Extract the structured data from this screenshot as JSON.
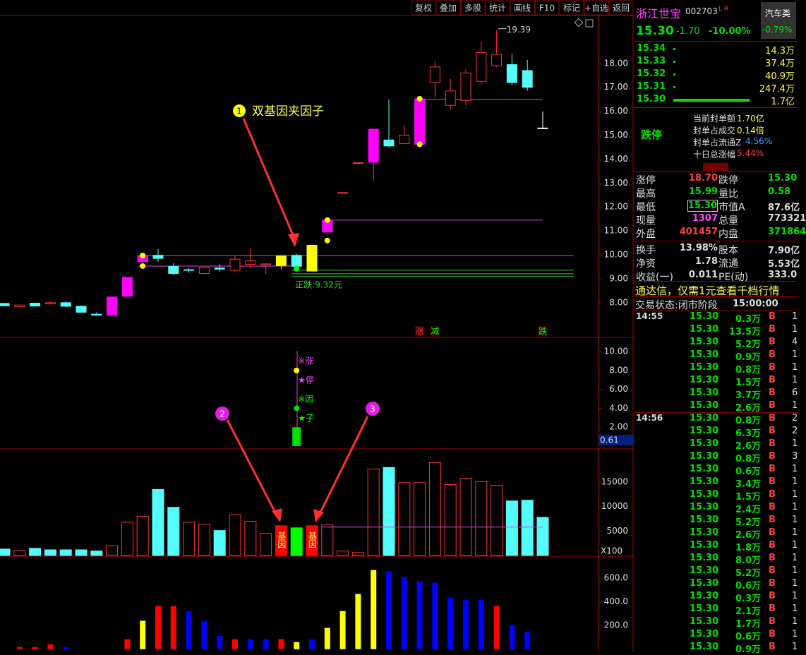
{
  "toolbar": [
    "复权",
    "叠加",
    "多股",
    "统计",
    "画线",
    "F10",
    "标记",
    "+自选",
    "返回"
  ],
  "callouts": [
    {
      "number": "1",
      "text": "双基因夹因子"
    },
    {
      "number": "2"
    },
    {
      "number": "3"
    }
  ],
  "chart_data": [
    {
      "type": "candlestick",
      "ylim": [
        6.55,
        20.0
      ],
      "yticks": [
        {
          "value": 18,
          "label": "18.00"
        },
        {
          "value": 17,
          "label": "17.00"
        },
        {
          "value": 16,
          "label": "16.00"
        },
        {
          "value": 15,
          "label": "15.00"
        },
        {
          "value": 14,
          "label": "14.00"
        },
        {
          "value": 13,
          "label": "13.00"
        },
        {
          "value": 12,
          "label": "12.00"
        },
        {
          "value": 11,
          "label": "11.00"
        },
        {
          "value": 10,
          "label": "10.00"
        },
        {
          "value": 9,
          "label": "9.00"
        },
        {
          "value": 8,
          "label": "8.00"
        }
      ],
      "open": [
        7.97,
        7.83,
        7.98,
        7.95,
        8.0,
        7.85,
        7.52,
        7.48,
        8.27,
        9.71,
        9.98,
        9.52,
        9.38,
        9.22,
        9.45,
        9.35,
        9.6,
        9.58,
        9.95,
        9.98,
        9.32,
        10.95,
        12.6,
        13.85,
        13.87,
        14.8,
        14.65,
        14.62,
        17.2,
        16.25,
        16.45,
        17.25,
        17.9,
        17.95,
        17.7,
        15.3
      ],
      "high": [
        7.99,
        7.92,
        8.0,
        8.05,
        8.05,
        7.88,
        7.6,
        8.25,
        9.07,
        9.98,
        10.25,
        9.65,
        9.45,
        9.55,
        9.6,
        9.95,
        10.3,
        9.65,
        9.95,
        10.05,
        10.4,
        11.45,
        12.6,
        13.85,
        15.25,
        16.5,
        15.4,
        16.52,
        18.1,
        17.35,
        17.75,
        18.9,
        19.39,
        18.4,
        18.15,
        15.99
      ],
      "low": [
        7.85,
        7.8,
        7.85,
        7.92,
        7.82,
        7.58,
        7.45,
        7.47,
        8.25,
        9.68,
        9.7,
        9.15,
        9.25,
        9.18,
        9.3,
        9.3,
        9.45,
        9.2,
        9.4,
        9.45,
        9.32,
        10.9,
        12.6,
        13.85,
        13.1,
        14.5,
        14.65,
        14.6,
        16.6,
        16.1,
        16.25,
        17.1,
        17.85,
        17.1,
        16.85,
        15.3
      ],
      "close": [
        7.87,
        7.9,
        7.86,
        8.0,
        7.85,
        7.6,
        7.48,
        8.24,
        9.06,
        9.95,
        9.85,
        9.22,
        9.35,
        9.48,
        9.4,
        9.82,
        9.75,
        9.62,
        9.55,
        9.52,
        10.4,
        11.45,
        12.6,
        13.85,
        15.25,
        14.55,
        15.0,
        16.52,
        17.85,
        16.85,
        17.6,
        18.45,
        18.38,
        17.2,
        17.0,
        15.3
      ],
      "colors": [
        "#54fcfc",
        "#ff3232",
        "#54fcfc",
        "#ff3232",
        "#54fcfc",
        "#54fcfc",
        "#54fcfc",
        "#ff00ff",
        "#ff00ff",
        "#ff00ff",
        "#54fcfc",
        "#54fcfc",
        "#54fcfc",
        "#ff3232",
        "#54fcfc",
        "#ff3232",
        "#ff3232",
        "#ff3232",
        "#ffff00",
        "#54fcfc",
        "#ffff00",
        "#ff00ff",
        "#ff3232",
        "#ff3232",
        "#ff00ff",
        "#54fcfc",
        "#ff3232",
        "#ff00ff",
        "#ff3232",
        "#ff3232",
        "#ff3232",
        "#ff3232",
        "#ff3232",
        "#54fcfc",
        "#54fcfc",
        "#ffffff"
      ],
      "hollow": [
        false,
        true,
        false,
        true,
        false,
        false,
        false,
        false,
        false,
        false,
        false,
        false,
        false,
        true,
        false,
        true,
        true,
        true,
        false,
        false,
        false,
        false,
        true,
        true,
        false,
        false,
        true,
        false,
        true,
        true,
        true,
        true,
        true,
        false,
        false,
        false
      ],
      "dots": [
        {
          "index": 9,
          "value": 9.97,
          "color": "#ffff00"
        },
        {
          "index": 9,
          "value": 9.53,
          "color": "#ffff00"
        },
        {
          "index": 21,
          "value": 11.45,
          "color": "#ffff00"
        },
        {
          "index": 21,
          "value": 10.6,
          "color": "#ffff00"
        },
        {
          "index": 27,
          "value": 16.52,
          "color": "#ffff00"
        },
        {
          "index": 27,
          "value": 14.62,
          "color": "#ffff00"
        },
        {
          "index": 19,
          "value": 9.42,
          "color": "#00ff00"
        }
      ],
      "levels": [
        {
          "value": 9.97,
          "color": "#e040e0",
          "start": 9,
          "end": 37
        },
        {
          "value": 9.53,
          "color": "#e040e0",
          "start": 9,
          "end": 19
        },
        {
          "value": 16.5,
          "color": "#e040e0",
          "start": 27,
          "end": 35
        },
        {
          "value": 11.45,
          "color": "#e040e0",
          "start": 21,
          "end": 35
        },
        {
          "value": 9.36,
          "color": "#30d030",
          "start": 19,
          "end": 37
        },
        {
          "value": 9.21,
          "color": "#30d030",
          "start": 19,
          "end": 37
        },
        {
          "value": 9.09,
          "color": "#30d030",
          "start": 19,
          "end": 37
        }
      ],
      "note": "正跌:9.32元",
      "signals": [
        {
          "text": "涨",
          "index": 27,
          "color": "#ff3232"
        },
        {
          "text": "减",
          "index": 28,
          "color": "#00ff00"
        },
        {
          "text": "跌",
          "index": 35,
          "color": "#00ff00"
        }
      ]
    },
    {
      "type": "signal",
      "ylim": [
        -0.3,
        11.5
      ],
      "yticks": [
        {
          "value": 10,
          "label": "10.00"
        },
        {
          "value": 8,
          "label": "8.00"
        },
        {
          "value": 6,
          "label": "6.00"
        },
        {
          "value": 4,
          "label": "4.00"
        },
        {
          "value": 2,
          "label": "2.00"
        }
      ],
      "bar": {
        "index": 19,
        "value": 2,
        "color": "#00dd00"
      },
      "dots": [
        {
          "value": 8,
          "color": "#ffff00"
        },
        {
          "value": 4,
          "color": "#00dd00"
        }
      ],
      "labels": [
        {
          "text": "※涨",
          "color": "#ff40ff"
        },
        {
          "text": "★停",
          "color": "#ff40ff"
        },
        {
          "text": "※因",
          "color": "#00ff00"
        },
        {
          "text": "★子",
          "color": "#00ff00"
        }
      ],
      "current": 0.61
    },
    {
      "type": "volume",
      "ylim": [
        -150,
        21800
      ],
      "yticks": [
        15000,
        10000,
        5000
      ],
      "unit": "X100",
      "values": [
        1300,
        1000,
        1450,
        1150,
        1150,
        1150,
        900,
        2000,
        6800,
        8000,
        13500,
        9850,
        6800,
        6400,
        5100,
        8300,
        7000,
        4500,
        6100,
        5650,
        6100,
        6250,
        900,
        600,
        17700,
        18000,
        14900,
        14900,
        19000,
        14500,
        15800,
        15100,
        14350,
        11150,
        11300,
        7800
      ],
      "colors": [
        "#54fcfc",
        "#ff3232",
        "#54fcfc",
        "#54fcfc",
        "#54fcfc",
        "#54fcfc",
        "#54fcfc",
        "#ff3232",
        "#ff3232",
        "#ff3232",
        "#54fcfc",
        "#54fcfc",
        "#ff3232",
        "#ff3232",
        "#54fcfc",
        "#ff3232",
        "#ff3232",
        "#ff3232",
        "#ff0000",
        "#00ff00",
        "#ff0000",
        "#ff3232",
        "#ff3232",
        "#ff3232",
        "#ff3232",
        "#54fcfc",
        "#ff3232",
        "#ff3232",
        "#ff3232",
        "#ff3232",
        "#ff3232",
        "#ff3232",
        "#ff3232",
        "#54fcfc",
        "#54fcfc",
        "#54fcfc"
      ],
      "hollow": [
        false,
        true,
        false,
        false,
        false,
        false,
        false,
        true,
        true,
        true,
        false,
        false,
        true,
        true,
        false,
        true,
        true,
        true,
        false,
        false,
        false,
        true,
        true,
        true,
        true,
        false,
        true,
        true,
        true,
        true,
        true,
        true,
        true,
        false,
        false,
        false
      ],
      "annotations": [
        {
          "text": "基因",
          "index": 18
        },
        {
          "text": "基因",
          "index": 20
        }
      ],
      "levels": [
        {
          "value": 5800,
          "color": "#e040e0",
          "start": 21,
          "end": 35
        }
      ]
    },
    {
      "type": "bar",
      "ylim": [
        -25,
        785
      ],
      "yticks": [
        {
          "value": 600,
          "label": "600.0"
        },
        {
          "value": 400,
          "label": "400.0"
        },
        {
          "value": 200,
          "label": "200.0"
        }
      ],
      "values": [
        null,
        18,
        18,
        42,
        18,
        null,
        null,
        null,
        84,
        240,
        364,
        364,
        322,
        240,
        113,
        84,
        84,
        84,
        84,
        60,
        84,
        180,
        322,
        466,
        669,
        657,
        609,
        573,
        561,
        436,
        418,
        418,
        364,
        203,
        143,
        null
      ],
      "colors": [
        null,
        "#ff0000",
        "#ff0000",
        "#ff0000",
        "#0000ff",
        null,
        null,
        null,
        "#ff0000",
        "#ffff00",
        "#ff0000",
        "#ff0000",
        "#0000ff",
        "#0000ff",
        "#0000ff",
        "#ff0000",
        "#0000ff",
        "#0000ff",
        "#ff0000",
        "#ffff00",
        "#0000ff",
        "#ffff00",
        "#ffff00",
        "#ffff00",
        "#ffff00",
        "#0000ff",
        "#0000ff",
        "#0000ff",
        "#0000ff",
        "#0000ff",
        "#0000ff",
        "#0000ff",
        "#ff0000",
        "#0000ff",
        "#0000ff",
        null
      ]
    }
  ],
  "quote": {
    "name": "浙江世宝",
    "code": "002703",
    "flags": "L R",
    "sector": "汽车类",
    "price": "15.30",
    "change": "-1.70",
    "pct": "-10.00%",
    "sector_pct": "-0.79%"
  },
  "order_book": [
    [
      "15.34",
      "14.3万"
    ],
    [
      "15.33",
      "37.4万"
    ],
    [
      "15.32",
      "40.9万"
    ],
    [
      "15.31",
      "247.4万"
    ],
    [
      "15.30",
      "1.7亿"
    ]
  ],
  "limit_box": {
    "label": "跌停",
    "items": [
      [
        "当前封单额",
        "1.70亿"
      ],
      [
        "封单占成交",
        "0.14倍"
      ],
      [
        "封单占流通Z",
        "4.56%"
      ],
      [
        "十日总涨幅",
        "5.44%"
      ]
    ]
  },
  "stats": [
    [
      "涨停",
      "18.70",
      "跌停",
      "15.30"
    ],
    [
      "最高",
      "15.99",
      "量比",
      "0.58"
    ],
    [
      "最低",
      "15.30",
      "市值A",
      "87.6亿"
    ],
    [
      "现量",
      "1307",
      "总量",
      "773321"
    ],
    [
      "外盘",
      "401457",
      "内盘",
      "371864"
    ],
    [
      "换手",
      "13.98%",
      "股本",
      "7.90亿"
    ],
    [
      "净资",
      "1.78",
      "流通",
      "5.53亿"
    ],
    [
      "收益(一)",
      "0.011",
      "PE(动)",
      "333.0"
    ]
  ],
  "banner": "通达信，仅需1元查看千档行情",
  "status": [
    "交易状态:闭市阶段",
    "15:00:00"
  ],
  "trades": [
    {
      "time": "14:55",
      "rows": [
        [
          "15.30",
          "0.3万",
          "B",
          "1"
        ],
        [
          "15.30",
          "13.5万",
          "B",
          "1"
        ],
        [
          "15.30",
          "5.2万",
          "B",
          "4"
        ],
        [
          "15.30",
          "0.9万",
          "B",
          "1"
        ],
        [
          "15.30",
          "0.8万",
          "B",
          "1"
        ],
        [
          "15.30",
          "1.5万",
          "B",
          "1"
        ],
        [
          "15.30",
          "3.7万",
          "B",
          "6"
        ],
        [
          "15.30",
          "2.6万",
          "B",
          "1"
        ]
      ]
    },
    {
      "time": "14:56",
      "rows": [
        [
          "15.30",
          "0.8万",
          "B",
          "2"
        ],
        [
          "15.30",
          "6.3万",
          "B",
          "2"
        ],
        [
          "15.30",
          "2.6万",
          "B",
          "1"
        ],
        [
          "15.30",
          "0.8万",
          "B",
          "3"
        ],
        [
          "15.30",
          "0.6万",
          "B",
          "1"
        ],
        [
          "15.30",
          "3.4万",
          "B",
          "1"
        ],
        [
          "15.30",
          "1.5万",
          "B",
          "1"
        ],
        [
          "15.30",
          "2.4万",
          "B",
          "1"
        ],
        [
          "15.30",
          "5.2万",
          "B",
          "1"
        ],
        [
          "15.30",
          "2.6万",
          "B",
          "1"
        ],
        [
          "15.30",
          "1.8万",
          "B",
          "1"
        ],
        [
          "15.30",
          "8.0万",
          "B",
          "1"
        ],
        [
          "15.30",
          "5.2万",
          "B",
          "1"
        ],
        [
          "15.30",
          "0.6万",
          "B",
          "1"
        ],
        [
          "15.30",
          "0.3万",
          "B",
          "1"
        ],
        [
          "15.30",
          "2.1万",
          "B",
          "1"
        ],
        [
          "15.30",
          "1.7万",
          "B",
          "1"
        ],
        [
          "15.30",
          "0.6万",
          "B",
          "1"
        ],
        [
          "15.30",
          "0.9万",
          "B",
          "1"
        ]
      ]
    }
  ]
}
